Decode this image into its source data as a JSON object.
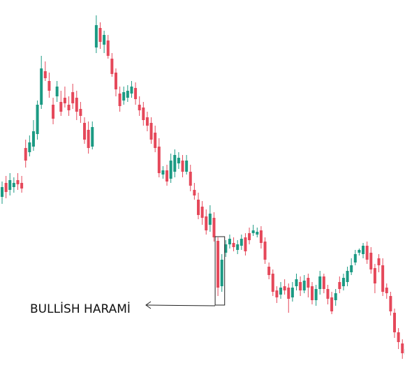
{
  "chart_data": {
    "type": "candlestick",
    "colors": {
      "up": "#1b9a83",
      "down": "#e5485a",
      "annotation": "#222222",
      "background": "#ffffff"
    },
    "grid": false,
    "axes_visible": false,
    "candles": [
      [
        282,
        268,
        292,
        260
      ],
      [
        262,
        275,
        284,
        252
      ],
      [
        272,
        258,
        280,
        248
      ],
      [
        268,
        262,
        276,
        254
      ],
      [
        258,
        264,
        272,
        248
      ],
      [
        262,
        270,
        276,
        252
      ],
      [
        212,
        230,
        240,
        200
      ],
      [
        218,
        204,
        224,
        194
      ],
      [
        210,
        188,
        216,
        172
      ],
      [
        192,
        150,
        200,
        144
      ],
      [
        150,
        98,
        156,
        80
      ],
      [
        102,
        112,
        116,
        88
      ],
      [
        116,
        130,
        140,
        104
      ],
      [
        150,
        170,
        178,
        140
      ],
      [
        138,
        124,
        146,
        116
      ],
      [
        146,
        160,
        166,
        130
      ],
      [
        140,
        148,
        154,
        124
      ],
      [
        150,
        158,
        166,
        138
      ],
      [
        132,
        148,
        156,
        120
      ],
      [
        140,
        160,
        172,
        130
      ],
      [
        156,
        166,
        176,
        146
      ],
      [
        176,
        200,
        206,
        168
      ],
      [
        186,
        212,
        220,
        174
      ],
      [
        210,
        182,
        214,
        174
      ],
      [
        68,
        36,
        76,
        22
      ],
      [
        40,
        60,
        70,
        32
      ],
      [
        64,
        50,
        76,
        44
      ],
      [
        58,
        80,
        84,
        50
      ],
      [
        84,
        106,
        110,
        76
      ],
      [
        104,
        128,
        138,
        98
      ],
      [
        134,
        152,
        160,
        124
      ],
      [
        144,
        132,
        150,
        124
      ],
      [
        140,
        130,
        146,
        122
      ],
      [
        134,
        124,
        140,
        116
      ],
      [
        126,
        142,
        150,
        118
      ],
      [
        150,
        158,
        166,
        138
      ],
      [
        154,
        172,
        180,
        146
      ],
      [
        168,
        180,
        188,
        160
      ],
      [
        176,
        200,
        206,
        168
      ],
      [
        190,
        212,
        218,
        180
      ],
      [
        210,
        248,
        254,
        198
      ],
      [
        250,
        244,
        256,
        238
      ],
      [
        244,
        260,
        266,
        236
      ],
      [
        256,
        230,
        262,
        220
      ],
      [
        246,
        222,
        254,
        214
      ],
      [
        234,
        226,
        242,
        218
      ],
      [
        230,
        246,
        254,
        222
      ],
      [
        246,
        230,
        250,
        222
      ],
      [
        246,
        266,
        274,
        236
      ],
      [
        272,
        280,
        286,
        262
      ],
      [
        286,
        308,
        314,
        276
      ],
      [
        296,
        312,
        322,
        288
      ],
      [
        310,
        330,
        336,
        300
      ],
      [
        322,
        306,
        332,
        294
      ],
      [
        312,
        340,
        346,
        304
      ],
      [
        345,
        412,
        424,
        340
      ],
      [
        410,
        372,
        418,
        364
      ],
      [
        362,
        350,
        368,
        344
      ],
      [
        350,
        342,
        356,
        336
      ],
      [
        348,
        354,
        360,
        340
      ],
      [
        358,
        350,
        364,
        344
      ],
      [
        352,
        342,
        358,
        336
      ],
      [
        340,
        360,
        366,
        334
      ],
      [
        334,
        344,
        350,
        326
      ],
      [
        334,
        330,
        338,
        322
      ],
      [
        336,
        332,
        340,
        326
      ],
      [
        330,
        348,
        356,
        324
      ],
      [
        346,
        372,
        378,
        340
      ],
      [
        382,
        394,
        400,
        376
      ],
      [
        392,
        418,
        424,
        386
      ],
      [
        416,
        426,
        434,
        410
      ],
      [
        422,
        412,
        428,
        404
      ],
      [
        410,
        416,
        422,
        400
      ],
      [
        412,
        428,
        448,
        406
      ],
      [
        426,
        412,
        432,
        404
      ],
      [
        410,
        400,
        416,
        392
      ],
      [
        404,
        416,
        424,
        396
      ],
      [
        416,
        402,
        420,
        394
      ],
      [
        398,
        412,
        426,
        392
      ],
      [
        410,
        430,
        436,
        404
      ],
      [
        430,
        414,
        438,
        408
      ],
      [
        414,
        396,
        422,
        388
      ],
      [
        396,
        414,
        420,
        392
      ],
      [
        414,
        428,
        436,
        408
      ],
      [
        426,
        446,
        450,
        418
      ],
      [
        430,
        420,
        438,
        414
      ],
      [
        404,
        414,
        420,
        396
      ],
      [
        410,
        398,
        416,
        392
      ],
      [
        404,
        388,
        410,
        382
      ],
      [
        390,
        380,
        394,
        370
      ],
      [
        376,
        364,
        380,
        358
      ],
      [
        362,
        358,
        366,
        356
      ],
      [
        364,
        352,
        370,
        348
      ],
      [
        352,
        372,
        378,
        346
      ],
      [
        362,
        386,
        392,
        354
      ],
      [
        384,
        406,
        420,
        378
      ],
      [
        370,
        380,
        390,
        364
      ],
      [
        380,
        418,
        424,
        370
      ],
      [
        412,
        420,
        428,
        406
      ],
      [
        424,
        446,
        452,
        418
      ],
      [
        448,
        476,
        484,
        442
      ],
      [
        476,
        490,
        500,
        470
      ],
      [
        492,
        506,
        514,
        486
      ],
      [
        508,
        500,
        516,
        494
      ]
    ],
    "annotation": {
      "label": "BULLİSH HARAMİ",
      "candles": [
        55,
        56
      ]
    }
  }
}
